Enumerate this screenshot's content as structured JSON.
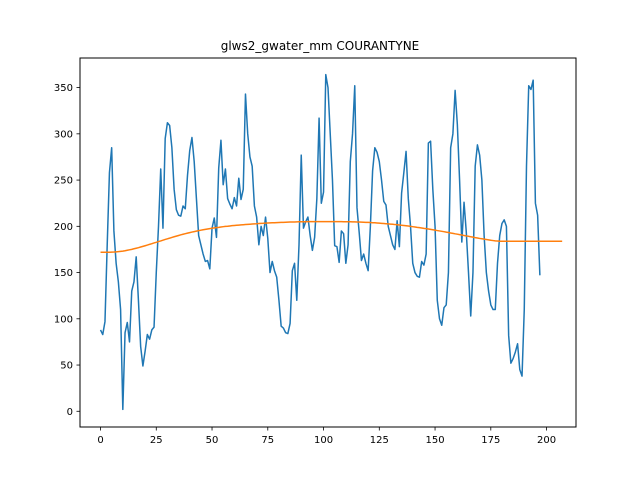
{
  "chart_data": {
    "type": "line",
    "title": "glws2_gwater_mm COURANTYNE",
    "xlabel": "",
    "ylabel": "",
    "xlim": [
      -9.2,
      213.2
    ],
    "ylim": [
      -17,
      382
    ],
    "xticks": [
      0,
      25,
      50,
      75,
      100,
      125,
      150,
      175,
      200
    ],
    "yticks": [
      0,
      50,
      100,
      150,
      200,
      250,
      300,
      350
    ],
    "grid": false,
    "series": [
      {
        "color": "#1f77b4",
        "y": [
          88,
          83,
          97,
          180,
          258,
          285,
          195,
          160,
          140,
          110,
          2,
          85,
          96,
          75,
          130,
          140,
          167,
          120,
          70,
          49,
          65,
          83,
          78,
          88,
          91,
          150,
          200,
          262,
          198,
          295,
          312,
          309,
          285,
          240,
          218,
          212,
          211,
          222,
          219,
          255,
          282,
          296,
          270,
          230,
          190,
          180,
          170,
          162,
          163,
          154,
          198,
          209,
          188,
          263,
          293,
          245,
          262,
          230,
          224,
          219,
          231,
          222,
          252,
          229,
          240,
          343,
          300,
          275,
          265,
          222,
          210,
          180,
          200,
          190,
          210,
          187,
          150,
          162,
          152,
          145,
          120,
          92,
          90,
          85,
          84,
          95,
          152,
          160,
          120,
          180,
          277,
          198,
          205,
          210,
          190,
          174,
          188,
          230,
          317,
          225,
          237,
          364,
          350,
          300,
          250,
          179,
          178,
          161,
          195,
          192,
          160,
          180,
          270,
          300,
          352,
          220,
          193,
          163,
          170,
          160,
          152,
          200,
          260,
          285,
          280,
          270,
          250,
          227,
          223,
          200,
          190,
          180,
          175,
          206,
          178,
          236,
          258,
          281,
          230,
          200,
          160,
          150,
          146,
          145,
          162,
          158,
          170,
          290,
          292,
          240,
          200,
          120,
          100,
          93,
          112,
          115,
          150,
          285,
          300,
          347,
          310,
          250,
          183,
          226,
          194,
          150,
          103,
          150,
          265,
          288,
          277,
          250,
          190,
          150,
          130,
          115,
          110,
          110,
          160,
          190,
          203,
          207,
          200,
          82,
          52,
          57,
          64,
          73,
          45,
          38,
          110,
          265,
          352,
          348,
          358,
          225,
          212,
          147
        ],
        "smooth": [
          172,
          172,
          172,
          172,
          172,
          172.1,
          172.2,
          172.4,
          172.6,
          172.9,
          173.2,
          173.6,
          174.1,
          174.6,
          175.1,
          175.7,
          176.3,
          176.9,
          177.6,
          178.3,
          179,
          179.7,
          180.5,
          181.2,
          182,
          182.7,
          183.5,
          184.2,
          185,
          185.8,
          186.5,
          187.2,
          188,
          188.7,
          189.4,
          190.1,
          190.8,
          191.4,
          192,
          192.6,
          193.2,
          193.8,
          194.3,
          194.8,
          195.3,
          195.8,
          196.3,
          196.7,
          197.1,
          197.5,
          197.9,
          198.3,
          198.6,
          198.9,
          199.3,
          199.6,
          199.9,
          200.1,
          200.4,
          200.7,
          200.9,
          201.1,
          201.3,
          201.5,
          201.7,
          201.9,
          202.1,
          202.3,
          202.5,
          202.7,
          202.8,
          203,
          203.2,
          203.3,
          203.5,
          203.6,
          203.7,
          203.8,
          203.9,
          204,
          204.1,
          204.2,
          204.3,
          204.4,
          204.5,
          204.6,
          204.7,
          204.7,
          204.8,
          204.9,
          204.9,
          205,
          205,
          205.1,
          205.1,
          205.1,
          205.1,
          205.1,
          205.1,
          205.1,
          205.1,
          205.1,
          205.1,
          205.1,
          205.1,
          205.1,
          205.1,
          205.1,
          205.1,
          205,
          205,
          204.9,
          204.9,
          204.8,
          204.8,
          204.7,
          204.6,
          204.5,
          204.4,
          204.3,
          204.2,
          204.1,
          203.9,
          203.8,
          203.6,
          203.4,
          203.2,
          203,
          202.8,
          202.6,
          202.4,
          202.2,
          201.9,
          201.7,
          201.4,
          201.1,
          200.9,
          200.6,
          200.3,
          199.9,
          199.6,
          199.3,
          198.9,
          198.6,
          198.2,
          197.8,
          197.5,
          197.1,
          196.7,
          196.3,
          195.9,
          195.4,
          195,
          194.6,
          194.2,
          193.7,
          193.3,
          192.8,
          192.4,
          191.9,
          191.5,
          191,
          190.6,
          190.1,
          189.6,
          189.2,
          188.7,
          188.3,
          187.8,
          187.4,
          186.9,
          186.5,
          186.1,
          185.7,
          185.3,
          184.9,
          184.6,
          184.3,
          184.1,
          183.9,
          183.8,
          183.8,
          183.8,
          183.8,
          183.8,
          183.8,
          183.8,
          183.8,
          183.8,
          183.8,
          183.8,
          183.8,
          183.8,
          183.8,
          183.8,
          183.8,
          183.8,
          183.8,
          183.8,
          183.8,
          183.8,
          183.8,
          183.8,
          183.8,
          183.8,
          183.8,
          183.8,
          183.8
        ]
      }
    ],
    "smooth_color": "#ff7f0e"
  }
}
